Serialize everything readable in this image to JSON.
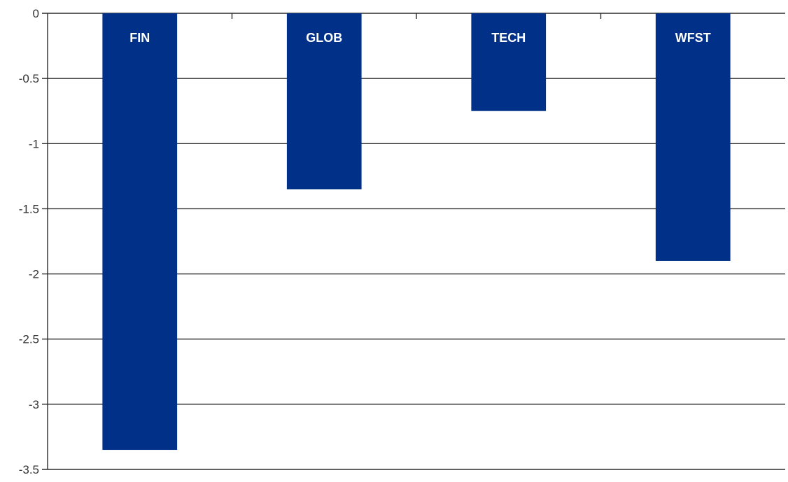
{
  "chart_data": {
    "type": "bar",
    "categories": [
      "FIN",
      "GLOB",
      "TECH",
      "WFST"
    ],
    "values": [
      -3.35,
      -1.35,
      -0.75,
      -1.9
    ],
    "title": "",
    "xlabel": "",
    "ylabel": "",
    "ylim": [
      -3.5,
      0
    ],
    "yticks": [
      0,
      -0.5,
      -1,
      -1.5,
      -2,
      -2.5,
      -3,
      -3.5
    ],
    "ytick_labels": [
      "0",
      "-0.5",
      "-1",
      "-1.5",
      "-2",
      "-2.5",
      "-3",
      "-3.5"
    ],
    "grid": true,
    "legend": "none",
    "category_labels_position": "inside-top-of-bar",
    "colors": {
      "bar": "#003087",
      "bar_label": "#ffffff",
      "grid": "#2b2b2b",
      "tick_label": "#333333"
    }
  }
}
